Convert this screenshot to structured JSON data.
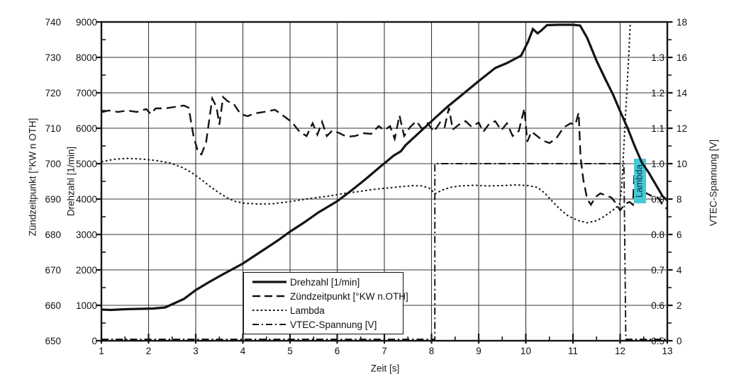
{
  "chart_data": {
    "type": "line",
    "title": "",
    "grid": true,
    "legend_position": "inside-bottom-center",
    "axes": {
      "x": {
        "title": "Zeit [s]",
        "range": [
          1,
          13
        ],
        "major": 1,
        "minor": 0.5
      },
      "zuendzeitpunkt": {
        "title": "Zündzeitpunkt [°KW n OTH]",
        "range": [
          650,
          740
        ],
        "major": 10,
        "minor": 5
      },
      "drehzahl": {
        "title": "Drehzahl [1/min]",
        "range": [
          0,
          9000
        ],
        "major": 1000,
        "minor": 500
      },
      "lambda": {
        "title": "Lambda",
        "range": [
          0.5,
          1.4
        ],
        "major": 0.1,
        "labeled_max": 1.3
      },
      "vtec": {
        "title": "VTEC-Spannung [V]",
        "range": [
          0,
          18
        ],
        "major": 2,
        "minor": 1
      }
    },
    "series": [
      {
        "name": "Drehzahl [1/min]",
        "axis": "drehzahl",
        "style": "solid",
        "points": [
          [
            1,
            880
          ],
          [
            1.2,
            870
          ],
          [
            1.5,
            890
          ],
          [
            1.8,
            900
          ],
          [
            2.1,
            910
          ],
          [
            2.35,
            940
          ],
          [
            2.5,
            1030
          ],
          [
            2.75,
            1180
          ],
          [
            3,
            1430
          ],
          [
            3.25,
            1630
          ],
          [
            3.5,
            1820
          ],
          [
            3.75,
            2000
          ],
          [
            4,
            2180
          ],
          [
            4.25,
            2400
          ],
          [
            4.5,
            2620
          ],
          [
            4.75,
            2840
          ],
          [
            5,
            3080
          ],
          [
            5.3,
            3340
          ],
          [
            5.6,
            3620
          ],
          [
            5.75,
            3740
          ],
          [
            6,
            3940
          ],
          [
            6.3,
            4240
          ],
          [
            6.6,
            4560
          ],
          [
            6.9,
            4900
          ],
          [
            7.2,
            5230
          ],
          [
            7.35,
            5350
          ],
          [
            7.45,
            5520
          ],
          [
            7.8,
            5950
          ],
          [
            8.1,
            6320
          ],
          [
            8.35,
            6620
          ],
          [
            8.7,
            7000
          ],
          [
            9,
            7330
          ],
          [
            9.35,
            7700
          ],
          [
            9.6,
            7840
          ],
          [
            9.9,
            8050
          ],
          [
            10.05,
            8450
          ],
          [
            10.15,
            8800
          ],
          [
            10.25,
            8680
          ],
          [
            10.32,
            8750
          ],
          [
            10.45,
            8910
          ],
          [
            10.7,
            8920
          ],
          [
            11,
            8920
          ],
          [
            11.15,
            8900
          ],
          [
            11.3,
            8550
          ],
          [
            11.5,
            7900
          ],
          [
            11.7,
            7350
          ],
          [
            11.85,
            6950
          ],
          [
            12,
            6480
          ],
          [
            12.16,
            6000
          ],
          [
            12.3,
            5520
          ],
          [
            12.46,
            5030
          ],
          [
            12.6,
            4760
          ],
          [
            12.75,
            4420
          ],
          [
            12.9,
            4080
          ],
          [
            13,
            3960
          ]
        ]
      },
      {
        "name": "Zündzeitpunkt [°KW n.OTH]",
        "axis": "zuendzeitpunkt",
        "style": "dashed",
        "points": [
          [
            1,
            714.5
          ],
          [
            1.15,
            715
          ],
          [
            1.35,
            714.6
          ],
          [
            1.55,
            715
          ],
          [
            1.75,
            714.6
          ],
          [
            1.95,
            715.4
          ],
          [
            2.05,
            714
          ],
          [
            2.15,
            715.6
          ],
          [
            2.35,
            715.6
          ],
          [
            2.55,
            716
          ],
          [
            2.75,
            716.4
          ],
          [
            2.85,
            715.8
          ],
          [
            2.95,
            708
          ],
          [
            3.05,
            703.2
          ],
          [
            3.12,
            702.6
          ],
          [
            3.22,
            706
          ],
          [
            3.35,
            718.4
          ],
          [
            3.44,
            716
          ],
          [
            3.5,
            711
          ],
          [
            3.58,
            718.8
          ],
          [
            3.68,
            717.6
          ],
          [
            3.8,
            717
          ],
          [
            3.95,
            714
          ],
          [
            4.1,
            713.4
          ],
          [
            4.25,
            714.2
          ],
          [
            4.45,
            714.6
          ],
          [
            4.68,
            715.2
          ],
          [
            4.85,
            713.6
          ],
          [
            5.05,
            711.6
          ],
          [
            5.2,
            709
          ],
          [
            5.35,
            707.8
          ],
          [
            5.48,
            711.4
          ],
          [
            5.58,
            708.2
          ],
          [
            5.68,
            711.8
          ],
          [
            5.78,
            707.8
          ],
          [
            5.9,
            709.4
          ],
          [
            6.05,
            708.6
          ],
          [
            6.2,
            707.6
          ],
          [
            6.38,
            707.8
          ],
          [
            6.55,
            708.6
          ],
          [
            6.72,
            708.4
          ],
          [
            6.88,
            710.6
          ],
          [
            7,
            709.4
          ],
          [
            7.12,
            710.6
          ],
          [
            7.22,
            707
          ],
          [
            7.32,
            713.6
          ],
          [
            7.42,
            707.8
          ],
          [
            7.55,
            710.4
          ],
          [
            7.68,
            712
          ],
          [
            7.8,
            709.8
          ],
          [
            7.92,
            711.4
          ],
          [
            8.05,
            709
          ],
          [
            8.18,
            711.6
          ],
          [
            8.28,
            710.4
          ],
          [
            8.37,
            715.8
          ],
          [
            8.45,
            709.6
          ],
          [
            8.58,
            711
          ],
          [
            8.72,
            712
          ],
          [
            8.85,
            710.4
          ],
          [
            9,
            711.6
          ],
          [
            9.1,
            709
          ],
          [
            9.22,
            711.2
          ],
          [
            9.35,
            712
          ],
          [
            9.48,
            709.4
          ],
          [
            9.6,
            711.4
          ],
          [
            9.72,
            707.8
          ],
          [
            9.85,
            709.2
          ],
          [
            9.97,
            715.6
          ],
          [
            10.03,
            706.2
          ],
          [
            10.12,
            709
          ],
          [
            10.22,
            708
          ],
          [
            10.35,
            706.6
          ],
          [
            10.5,
            705.8
          ],
          [
            10.65,
            707.2
          ],
          [
            10.8,
            710.2
          ],
          [
            10.95,
            711.4
          ],
          [
            11.05,
            711
          ],
          [
            11.12,
            714.4
          ],
          [
            11.16,
            702
          ],
          [
            11.22,
            695.4
          ],
          [
            11.3,
            690
          ],
          [
            11.38,
            688.4
          ],
          [
            11.48,
            690.6
          ],
          [
            11.58,
            691.6
          ],
          [
            11.7,
            691
          ],
          [
            11.82,
            690.4
          ],
          [
            11.92,
            688.6
          ],
          [
            12,
            686.8
          ],
          [
            12.1,
            688.6
          ],
          [
            12.2,
            689.2
          ],
          [
            12.27,
            688.4
          ],
          [
            12.3,
            696.8
          ],
          [
            12.36,
            695
          ],
          [
            12.5,
            692
          ],
          [
            12.65,
            691
          ],
          [
            12.8,
            690.4
          ],
          [
            12.92,
            688
          ],
          [
            13,
            687.2
          ]
        ]
      },
      {
        "name": "Lambda",
        "axis": "lambda",
        "style": "dotted",
        "points": [
          [
            1,
            1.005
          ],
          [
            1.25,
            1.012
          ],
          [
            1.55,
            1.015
          ],
          [
            1.85,
            1.013
          ],
          [
            2.15,
            1.009
          ],
          [
            2.45,
            1.002
          ],
          [
            2.7,
            0.99
          ],
          [
            2.9,
            0.976
          ],
          [
            3.1,
            0.957
          ],
          [
            3.3,
            0.936
          ],
          [
            3.5,
            0.917
          ],
          [
            3.7,
            0.901
          ],
          [
            3.85,
            0.893
          ],
          [
            4.05,
            0.888
          ],
          [
            4.35,
            0.886
          ],
          [
            4.65,
            0.887
          ],
          [
            4.95,
            0.892
          ],
          [
            5.25,
            0.898
          ],
          [
            5.55,
            0.904
          ],
          [
            5.85,
            0.909
          ],
          [
            6.15,
            0.916
          ],
          [
            6.45,
            0.921
          ],
          [
            6.75,
            0.927
          ],
          [
            7.05,
            0.931
          ],
          [
            7.35,
            0.935
          ],
          [
            7.6,
            0.938
          ],
          [
            7.8,
            0.937
          ],
          [
            7.95,
            0.931
          ],
          [
            8.08,
            0.915
          ],
          [
            8.22,
            0.925
          ],
          [
            8.4,
            0.933
          ],
          [
            8.6,
            0.937
          ],
          [
            8.9,
            0.939
          ],
          [
            9.2,
            0.937
          ],
          [
            9.5,
            0.938
          ],
          [
            9.8,
            0.94
          ],
          [
            10.05,
            0.938
          ],
          [
            10.25,
            0.933
          ],
          [
            10.4,
            0.917
          ],
          [
            10.55,
            0.895
          ],
          [
            10.72,
            0.872
          ],
          [
            10.9,
            0.852
          ],
          [
            11.1,
            0.84
          ],
          [
            11.3,
            0.833
          ],
          [
            11.5,
            0.839
          ],
          [
            11.65,
            0.85
          ],
          [
            11.8,
            0.864
          ],
          [
            11.92,
            0.877
          ],
          [
            11.99,
            0.886
          ],
          [
            12.03,
            0.93
          ],
          [
            12.06,
            1.0
          ],
          [
            12.1,
            1.1
          ],
          [
            12.14,
            1.2
          ],
          [
            12.18,
            1.3
          ],
          [
            12.22,
            1.41
          ]
        ]
      },
      {
        "name": "VTEC-Spannung [V]",
        "axis": "vtec",
        "style": "dashdot",
        "points": [
          [
            1,
            0.08
          ],
          [
            8.07,
            0.08
          ],
          [
            8.07,
            10
          ],
          [
            12.08,
            10
          ],
          [
            12.12,
            0.08
          ],
          [
            13,
            0.08
          ]
        ]
      }
    ],
    "annotation": {
      "text": "Lambda",
      "highlight_color": "#46c8da",
      "near_x": 12.4,
      "on_axis": "lambda"
    }
  }
}
